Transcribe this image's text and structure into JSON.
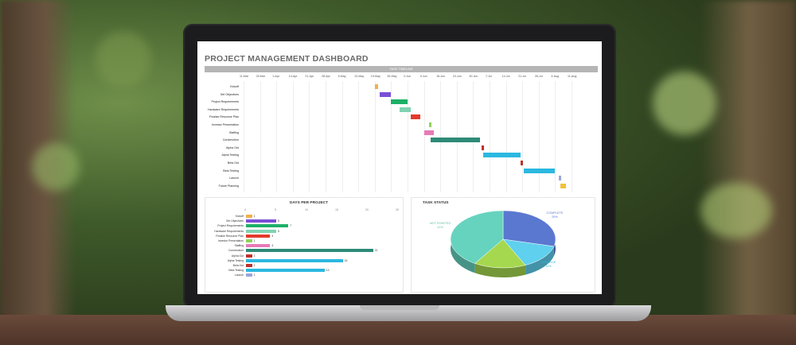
{
  "dashboard": {
    "title": "PROJECT MANAGEMENT DASHBOARD",
    "timeline_header": "TASK TIMELINE"
  },
  "gantt": {
    "dates": [
      "11-Mar",
      "25-Mar",
      "1-Apr",
      "14-Apr",
      "21-Apr",
      "28-Apr",
      "5-May",
      "12-May",
      "19-May",
      "26-May",
      "2-Jun",
      "9-Jun",
      "16-Jun",
      "23-Jun",
      "30-Jun",
      "7-Jul",
      "14-Jul",
      "21-Jul",
      "28-Jul",
      "4-Aug",
      "11-Aug"
    ],
    "tasks": [
      {
        "name": "Kickoff",
        "start": 8.0,
        "len": 0.2,
        "color": "#f0b24a"
      },
      {
        "name": "Set Objectives",
        "start": 8.3,
        "len": 0.7,
        "color": "#7b4fd6"
      },
      {
        "name": "Project Requirements",
        "start": 9.0,
        "len": 1.0,
        "color": "#1db067"
      },
      {
        "name": "Hardware Requirements",
        "start": 9.5,
        "len": 0.7,
        "color": "#7fd3b1"
      },
      {
        "name": "Finalize Resource Plan",
        "start": 10.2,
        "len": 0.6,
        "color": "#e23a2c"
      },
      {
        "name": "Investor Presentation",
        "start": 11.3,
        "len": 0.15,
        "color": "#8fd35a"
      },
      {
        "name": "Staffing",
        "start": 11.0,
        "len": 0.6,
        "color": "#e67ab6"
      },
      {
        "name": "Construction",
        "start": 11.4,
        "len": 3.0,
        "color": "#2e8a78"
      },
      {
        "name": "Alpha Out",
        "start": 14.5,
        "len": 0.15,
        "color": "#c0312a"
      },
      {
        "name": "Alpha Testing",
        "start": 14.6,
        "len": 2.3,
        "color": "#2bb8e0"
      },
      {
        "name": "Beta Out",
        "start": 16.9,
        "len": 0.15,
        "color": "#c0312a"
      },
      {
        "name": "Beta Testing",
        "start": 17.1,
        "len": 1.9,
        "color": "#2bb8e0"
      },
      {
        "name": "Launch",
        "start": 19.2,
        "len": 0.12,
        "color": "#9aa6d8"
      },
      {
        "name": "Future Planning",
        "start": 19.3,
        "len": 0.35,
        "color": "#f0c33a"
      }
    ]
  },
  "days_per_project": {
    "title": "DAYS PER PROJECT",
    "axis": [
      "0",
      "5",
      "10",
      "15",
      "20",
      "25"
    ],
    "max": 25,
    "items": [
      {
        "name": "Kickoff",
        "value": 1,
        "color": "#f0b24a"
      },
      {
        "name": "Set Objectives",
        "value": 5,
        "color": "#7b4fd6"
      },
      {
        "name": "Project Requirements",
        "value": 7,
        "color": "#1db067"
      },
      {
        "name": "Hardware Requirements",
        "value": 5,
        "color": "#7fd3b1"
      },
      {
        "name": "Finalize Resource Plan",
        "value": 4,
        "color": "#e23a2c"
      },
      {
        "name": "Investor Presentation",
        "value": 1,
        "color": "#8fd35a"
      },
      {
        "name": "Staffing",
        "value": 4,
        "color": "#e67ab6"
      },
      {
        "name": "Construction",
        "value": 21,
        "color": "#2e8a78"
      },
      {
        "name": "Alpha Out",
        "value": 1,
        "color": "#c0312a"
      },
      {
        "name": "Alpha Testing",
        "value": 16,
        "color": "#2bb8e0"
      },
      {
        "name": "Beta Out",
        "value": 1,
        "color": "#c0312a"
      },
      {
        "name": "Beta Testing",
        "value": 13,
        "color": "#2bb8e0"
      },
      {
        "name": "Launch",
        "value": 1,
        "color": "#9aa6d8"
      }
    ]
  },
  "task_status": {
    "title": "TASK STATUS",
    "slices": [
      {
        "label": "COMPLETE",
        "pct": "29%",
        "value": 29,
        "color": "#5a78d0"
      },
      {
        "label": "OVERDUE",
        "pct": "14%",
        "value": 14,
        "color": "#5fd0ee"
      },
      {
        "label": "",
        "pct": "",
        "value": 16,
        "color": "#a6d84f"
      },
      {
        "label": "NOT STARTED",
        "pct": "41%",
        "value": 41,
        "color": "#66d3bf"
      }
    ]
  }
}
